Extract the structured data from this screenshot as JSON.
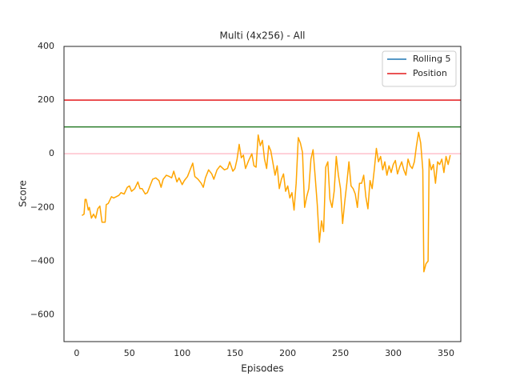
{
  "chart_data": {
    "type": "line",
    "title": "Multi (4x256) - All",
    "xlabel": "Episodes",
    "ylabel": "Score",
    "xlim": [
      -12,
      364
    ],
    "ylim": [
      -700,
      400
    ],
    "xticks": [
      0,
      50,
      100,
      150,
      200,
      250,
      300,
      350
    ],
    "yticks": [
      {
        "value": -600,
        "label": "−600"
      },
      {
        "value": -400,
        "label": "−400"
      },
      {
        "value": -200,
        "label": "−200"
      },
      0,
      200,
      400
    ],
    "legend_position": "upper right",
    "legend": [
      {
        "name": "Rolling 5",
        "color": "#1f77b4"
      },
      {
        "name": "Position",
        "color": "#e41a1c"
      }
    ],
    "hlines": [
      {
        "value": 200,
        "color": "#e41a1c"
      },
      {
        "value": 100,
        "color": "#2a7d2a"
      },
      {
        "value": 0,
        "color": "#ffc0cb"
      }
    ],
    "x": [
      5,
      7,
      8,
      9,
      11,
      12,
      14,
      16,
      18,
      20,
      22,
      24,
      27,
      28,
      30,
      33,
      35,
      40,
      42,
      45,
      48,
      50,
      52,
      55,
      58,
      60,
      62,
      65,
      67,
      70,
      72,
      75,
      78,
      80,
      82,
      85,
      88,
      90,
      92,
      95,
      97,
      100,
      102,
      105,
      107,
      110,
      112,
      115,
      118,
      120,
      122,
      125,
      128,
      130,
      133,
      136,
      140,
      143,
      145,
      148,
      150,
      152,
      154,
      156,
      158,
      160,
      163,
      166,
      168,
      170,
      172,
      174,
      176,
      178,
      180,
      182,
      184,
      186,
      188,
      190,
      192,
      194,
      196,
      198,
      200,
      202,
      204,
      206,
      208,
      210,
      212,
      214,
      216,
      218,
      220,
      222,
      224,
      226,
      228,
      230,
      232,
      234,
      236,
      238,
      240,
      242,
      244,
      246,
      248,
      250,
      252,
      254,
      256,
      258,
      260,
      262,
      264,
      266,
      268,
      270,
      272,
      274,
      276,
      278,
      280,
      282,
      284,
      286,
      288,
      290,
      292,
      294,
      296,
      298,
      300,
      302,
      304,
      306,
      308,
      310,
      312,
      314,
      316,
      318,
      320,
      322,
      324,
      326,
      328,
      329,
      331,
      333,
      334,
      336,
      338,
      340,
      342,
      344,
      346,
      348,
      350,
      352,
      354
    ],
    "series": [
      {
        "color": "#ffa500",
        "values": [
          -230,
          -225,
          -170,
          -170,
          -210,
          -200,
          -240,
          -225,
          -240,
          -205,
          -195,
          -255,
          -255,
          -190,
          -185,
          -160,
          -165,
          -155,
          -145,
          -150,
          -125,
          -120,
          -140,
          -130,
          -105,
          -130,
          -130,
          -150,
          -145,
          -115,
          -95,
          -90,
          -100,
          -125,
          -95,
          -80,
          -85,
          -90,
          -65,
          -105,
          -90,
          -115,
          -100,
          -85,
          -65,
          -35,
          -85,
          -95,
          -110,
          -125,
          -90,
          -60,
          -75,
          -95,
          -60,
          -45,
          -60,
          -55,
          -30,
          -65,
          -55,
          -20,
          35,
          -15,
          -5,
          -55,
          -25,
          0,
          -45,
          -50,
          70,
          30,
          50,
          -20,
          -55,
          30,
          10,
          -35,
          -80,
          -45,
          -130,
          -95,
          -75,
          -140,
          -120,
          -165,
          -145,
          -210,
          -110,
          60,
          40,
          5,
          -200,
          -160,
          -130,
          -20,
          15,
          -85,
          -190,
          -330,
          -250,
          -290,
          -50,
          -30,
          -170,
          -200,
          -140,
          -10,
          -80,
          -130,
          -260,
          -180,
          -110,
          -30,
          -120,
          -130,
          -150,
          -200,
          -110,
          -110,
          -80,
          -160,
          -205,
          -100,
          -130,
          -60,
          20,
          -30,
          -10,
          -60,
          -30,
          -80,
          -45,
          -70,
          -40,
          -25,
          -75,
          -50,
          -30,
          -60,
          -80,
          -20,
          -45,
          -55,
          -30,
          30,
          80,
          40,
          -60,
          -440,
          -410,
          -400,
          -20,
          -60,
          -40,
          -110,
          -30,
          -40,
          -20,
          -70,
          -10,
          -40,
          -5
        ]
      }
    ]
  }
}
